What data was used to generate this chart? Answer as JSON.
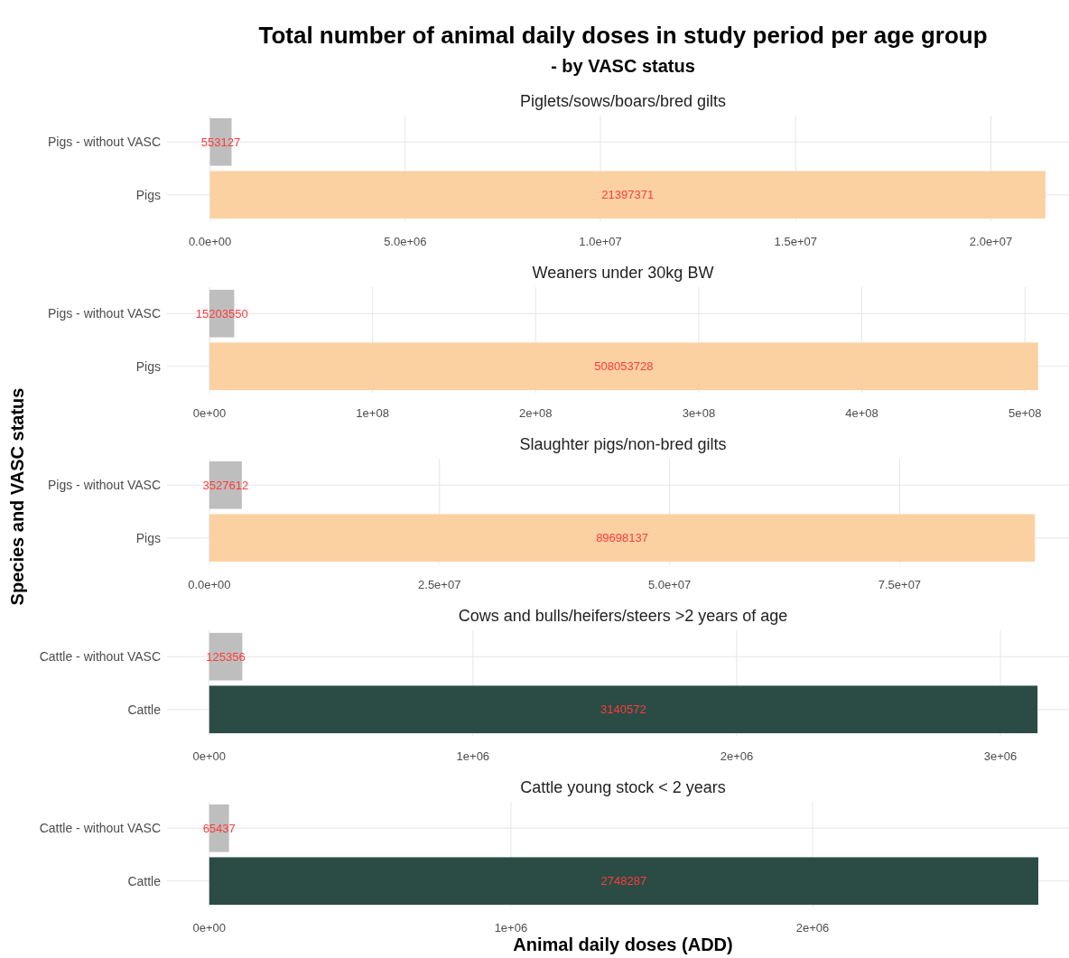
{
  "chart_data": [
    {
      "type": "other",
      "title": "Total number of animal daily doses in study period per age group",
      "subtitle": "- by VASC status"
    },
    {
      "type": "bar",
      "orientation": "horizontal",
      "title": "Piglets/sows/boars/bred gilts",
      "categories": [
        "Pigs - without VASC",
        "Pigs"
      ],
      "values": [
        553127,
        21397371
      ],
      "colors": [
        "#bebebe",
        "#fbd1a2"
      ],
      "xlim": [
        -1100000,
        22000000
      ],
      "xticks": [
        {
          "value": 0,
          "label": "0.0e+00"
        },
        {
          "value": 5000000,
          "label": "5.0e+06"
        },
        {
          "value": 10000000,
          "label": "1.0e+07"
        },
        {
          "value": 15000000,
          "label": "1.5e+07"
        },
        {
          "value": 20000000,
          "label": "2.0e+07"
        }
      ],
      "grid": true,
      "data_labels": true
    },
    {
      "type": "bar",
      "orientation": "horizontal",
      "title": "Weaners under 30kg BW",
      "categories": [
        "Pigs - without VASC",
        "Pigs"
      ],
      "values": [
        15203550,
        508053728
      ],
      "colors": [
        "#bebebe",
        "#fbd1a2"
      ],
      "xlim": [
        -26000000,
        527000000
      ],
      "xticks": [
        {
          "value": 0,
          "label": "0e+00"
        },
        {
          "value": 100000000,
          "label": "1e+08"
        },
        {
          "value": 200000000,
          "label": "2e+08"
        },
        {
          "value": 300000000,
          "label": "3e+08"
        },
        {
          "value": 400000000,
          "label": "4e+08"
        },
        {
          "value": 500000000,
          "label": "5e+08"
        }
      ],
      "grid": true,
      "data_labels": true
    },
    {
      "type": "bar",
      "orientation": "horizontal",
      "title": "Slaughter pigs/non-bred gilts",
      "ylabel": "Species and VASC status",
      "categories": [
        "Pigs - without VASC",
        "Pigs"
      ],
      "values": [
        3527612,
        89698137
      ],
      "colors": [
        "#bebebe",
        "#fbd1a2"
      ],
      "xlim": [
        -4600000,
        93400000
      ],
      "xticks": [
        {
          "value": 0,
          "label": "0.0e+00"
        },
        {
          "value": 25000000,
          "label": "2.5e+07"
        },
        {
          "value": 50000000,
          "label": "5.0e+07"
        },
        {
          "value": 75000000,
          "label": "7.5e+07"
        }
      ],
      "grid": true,
      "data_labels": true
    },
    {
      "type": "bar",
      "orientation": "horizontal",
      "title": "Cows and bulls/heifers/steers >2 years of age",
      "categories": [
        "Cattle - without VASC",
        "Cattle"
      ],
      "values": [
        125356,
        3140572
      ],
      "colors": [
        "#bebebe",
        "#2a4c44"
      ],
      "xlim": [
        -160000,
        3260000
      ],
      "xticks": [
        {
          "value": 0,
          "label": "0e+00"
        },
        {
          "value": 1000000,
          "label": "1e+06"
        },
        {
          "value": 2000000,
          "label": "2e+06"
        },
        {
          "value": 3000000,
          "label": "3e+06"
        }
      ],
      "grid": true,
      "data_labels": true
    },
    {
      "type": "bar",
      "orientation": "horizontal",
      "title": "Cattle young stock < 2 years",
      "xlabel": "Animal daily doses (ADD)",
      "categories": [
        "Cattle - without VASC",
        "Cattle"
      ],
      "values": [
        65437,
        2748287
      ],
      "colors": [
        "#bebebe",
        "#2a4c44"
      ],
      "xlim": [
        -140000,
        2850000
      ],
      "xticks": [
        {
          "value": 0,
          "label": "0e+00"
        },
        {
          "value": 1000000,
          "label": "1e+06"
        },
        {
          "value": 2000000,
          "label": "2e+06"
        }
      ],
      "grid": true,
      "data_labels": true
    }
  ]
}
